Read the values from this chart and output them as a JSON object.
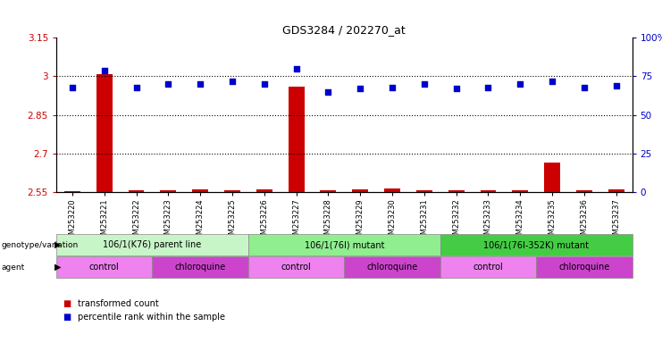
{
  "title": "GDS3284 / 202270_at",
  "samples": [
    "GSM253220",
    "GSM253221",
    "GSM253222",
    "GSM253223",
    "GSM253224",
    "GSM253225",
    "GSM253226",
    "GSM253227",
    "GSM253228",
    "GSM253229",
    "GSM253230",
    "GSM253231",
    "GSM253232",
    "GSM253233",
    "GSM253234",
    "GSM253235",
    "GSM253236",
    "GSM253237"
  ],
  "red_values": [
    2.555,
    3.01,
    2.557,
    2.558,
    2.559,
    2.558,
    2.562,
    2.96,
    2.558,
    2.562,
    2.565,
    2.558,
    2.558,
    2.557,
    2.558,
    2.665,
    2.557,
    2.562
  ],
  "blue_values": [
    68,
    79,
    68,
    70,
    70,
    72,
    70,
    80,
    65,
    67,
    68,
    70,
    67,
    68,
    70,
    72,
    68,
    69
  ],
  "ylim_left": [
    2.55,
    3.15
  ],
  "ylim_right": [
    0,
    100
  ],
  "yticks_left": [
    2.55,
    2.7,
    2.85,
    3.0,
    3.15
  ],
  "yticks_right": [
    0,
    25,
    50,
    75,
    100
  ],
  "ytick_labels_left": [
    "2.55",
    "2.7",
    "2.85",
    "3",
    "3.15"
  ],
  "ytick_labels_right": [
    "0",
    "25",
    "50",
    "75",
    "100%"
  ],
  "genotype_groups": [
    {
      "label": "106/1(K76) parent line",
      "start": 0,
      "end": 6,
      "color": "#c8f5c8"
    },
    {
      "label": "106/1(76I) mutant",
      "start": 6,
      "end": 12,
      "color": "#90ee90"
    },
    {
      "label": "106/1(76I-352K) mutant",
      "start": 12,
      "end": 18,
      "color": "#44cc44"
    }
  ],
  "agent_groups": [
    {
      "label": "control",
      "start": 0,
      "end": 3,
      "color": "#ee82ee"
    },
    {
      "label": "chloroquine",
      "start": 3,
      "end": 6,
      "color": "#cc44cc"
    },
    {
      "label": "control",
      "start": 6,
      "end": 9,
      "color": "#ee82ee"
    },
    {
      "label": "chloroquine",
      "start": 9,
      "end": 12,
      "color": "#cc44cc"
    },
    {
      "label": "control",
      "start": 12,
      "end": 15,
      "color": "#ee82ee"
    },
    {
      "label": "chloroquine",
      "start": 15,
      "end": 18,
      "color": "#cc44cc"
    }
  ],
  "red_color": "#cc0000",
  "blue_color": "#0000cc",
  "left_label_color": "#cc0000",
  "right_label_color": "#0000cc",
  "background_color": "#ffffff"
}
